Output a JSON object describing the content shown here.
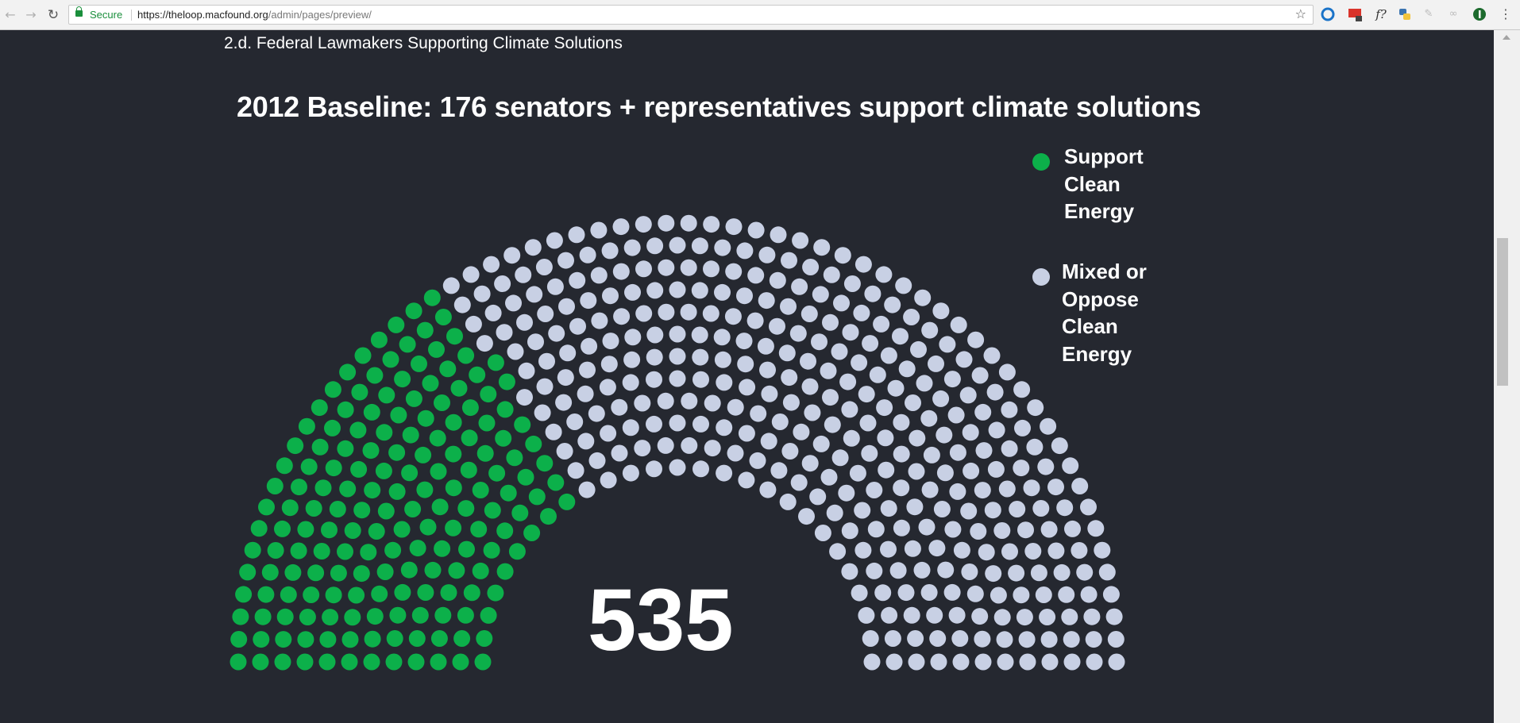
{
  "browser": {
    "secure_label": "Secure",
    "url_base": "https://theloop.macfound.org",
    "url_path": "/admin/pages/preview/",
    "extensions": [
      "circle-extension-icon",
      "grid-extension-icon",
      "f-extension-icon",
      "python-extension-icon",
      "pencil-extension-icon",
      "link-extension-icon",
      "green-extension-icon",
      "menu-dots-icon"
    ]
  },
  "page": {
    "section_heading": "2.d. Federal Lawmakers Supporting Climate Solutions"
  },
  "colors": {
    "background": "#252830",
    "support": "#0cb04a",
    "oppose": "#c8d0e4"
  },
  "chart_data": {
    "type": "parliament",
    "title": "2012 Baseline: 176 senators + representatives support climate solutions",
    "total_label": "535",
    "series": [
      {
        "name": "Support Clean Energy",
        "label": "Support\nClean\nEnergy",
        "seats": 176,
        "color": "#0cb04a"
      },
      {
        "name": "Mixed or Oppose Clean Energy",
        "label": "Mixed or\nOppose\nClean\nEnergy",
        "seats": 359,
        "color": "#c8d0e4"
      }
    ],
    "total_seats": 535,
    "rows": 12,
    "legend_position": "top-right"
  }
}
